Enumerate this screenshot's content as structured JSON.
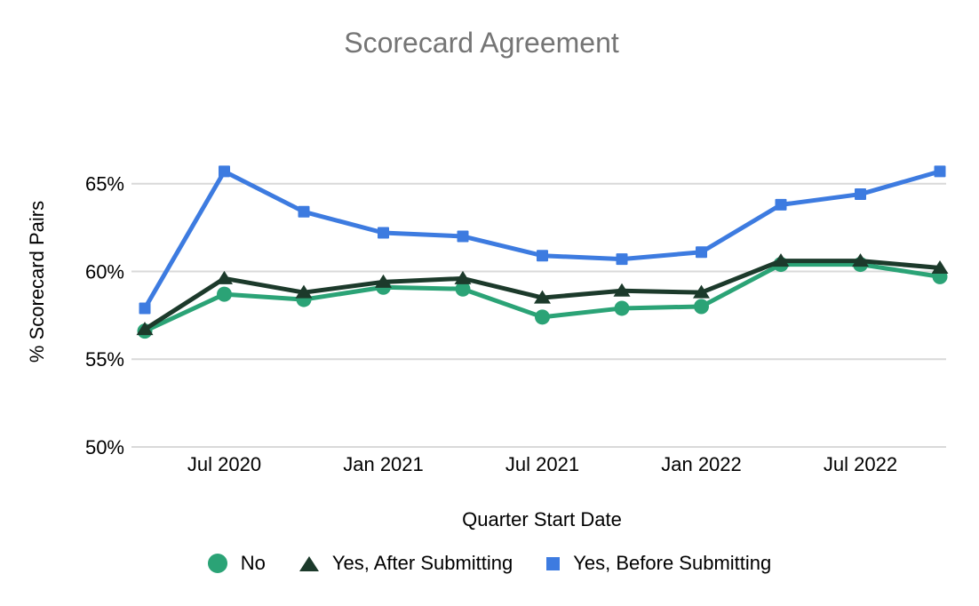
{
  "chart_data": {
    "type": "line",
    "title": "Scorecard Agreement",
    "xlabel": "Quarter Start Date",
    "ylabel": "% Scorecard Pairs",
    "x": [
      "Apr 2020",
      "Jul 2020",
      "Oct 2020",
      "Jan 2021",
      "Apr 2021",
      "Jul 2021",
      "Oct 2021",
      "Jan 2022",
      "Apr 2022",
      "Jul 2022",
      "Oct 2022"
    ],
    "x_tick_indices": [
      1,
      3,
      5,
      7,
      9
    ],
    "x_tick_labels": [
      "Jul 2020",
      "Jan 2021",
      "Jul 2021",
      "Jan 2022",
      "Jul 2022"
    ],
    "y_axis": {
      "min": 50,
      "max": 66.5,
      "ticks": [
        50,
        55,
        60,
        65
      ],
      "tick_suffix": "%"
    },
    "grid": "horizontal-only",
    "legend_position": "bottom",
    "series": [
      {
        "name": "No",
        "marker": "circle",
        "color": "#2BA376",
        "values": [
          56.6,
          58.7,
          58.4,
          59.1,
          59.0,
          57.4,
          57.9,
          58.0,
          60.4,
          60.4,
          59.7
        ]
      },
      {
        "name": "Yes, After Submitting",
        "marker": "triangle",
        "color": "#1C3A2B",
        "values": [
          56.7,
          59.6,
          58.8,
          59.4,
          59.6,
          58.5,
          58.9,
          58.8,
          60.6,
          60.6,
          60.2
        ]
      },
      {
        "name": "Yes, Before Submitting",
        "marker": "square",
        "color": "#3D7BE0",
        "values": [
          57.9,
          65.7,
          63.4,
          62.2,
          62.0,
          60.9,
          60.7,
          61.1,
          63.8,
          64.4,
          65.7
        ]
      }
    ],
    "colors": {
      "title": "#757575",
      "axis_text": "#000000",
      "gridline": "#D9D9D9",
      "background": "#FFFFFF"
    }
  }
}
